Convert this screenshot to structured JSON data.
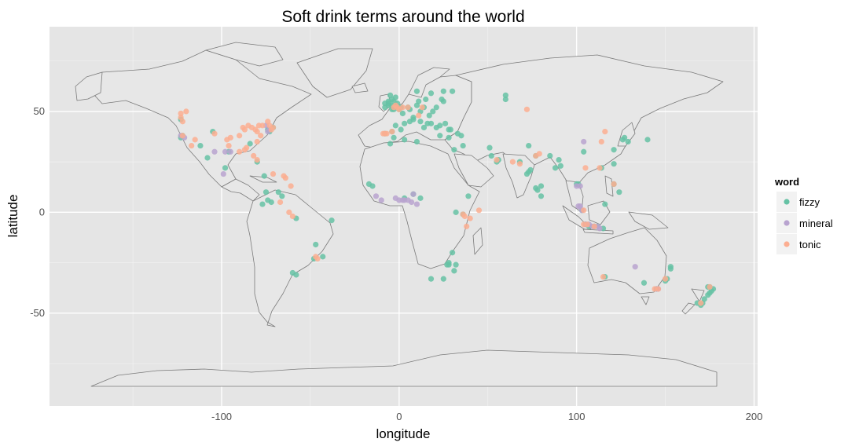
{
  "chart_data": {
    "type": "scatter",
    "title": "Soft drink terms around the world",
    "xlabel": "longitude",
    "ylabel": "latitude",
    "xlim": [
      -197,
      202
    ],
    "ylim": [
      -96,
      92
    ],
    "xticks": [
      -100,
      0,
      100,
      200
    ],
    "yticks": [
      -50,
      0,
      50
    ],
    "grid": true,
    "background": "#e5e5e5",
    "legend": {
      "title": "word",
      "position": "right"
    },
    "series": [
      {
        "name": "fizzy",
        "color": "#66c2a5",
        "points": [
          [
            -123,
            46
          ],
          [
            -123,
            37
          ],
          [
            -122,
            38
          ],
          [
            -112,
            33
          ],
          [
            -108,
            27
          ],
          [
            -105,
            40
          ],
          [
            -98,
            22
          ],
          [
            -96,
            30
          ],
          [
            -84,
            34
          ],
          [
            -80,
            25
          ],
          [
            -74,
            41
          ],
          [
            -71,
            42
          ],
          [
            -73,
            40
          ],
          [
            -76,
            18
          ],
          [
            -75,
            10
          ],
          [
            -72,
            5
          ],
          [
            -77,
            4
          ],
          [
            -74,
            6
          ],
          [
            -68,
            10
          ],
          [
            -66,
            8
          ],
          [
            -58,
            -3
          ],
          [
            -47,
            -16
          ],
          [
            -43,
            -22
          ],
          [
            -48,
            -23
          ],
          [
            -58,
            -31
          ],
          [
            -60,
            -30
          ],
          [
            -38,
            -4
          ],
          [
            -8,
            52
          ],
          [
            -6,
            53
          ],
          [
            -4,
            53
          ],
          [
            -3,
            55
          ],
          [
            -2,
            57
          ],
          [
            -4,
            56
          ],
          [
            -6,
            55
          ],
          [
            -5,
            58
          ],
          [
            -3,
            51
          ],
          [
            -1,
            52
          ],
          [
            0,
            51
          ],
          [
            -2,
            53
          ],
          [
            -1,
            54
          ],
          [
            1,
            52
          ],
          [
            -4,
            51
          ],
          [
            -6,
            54
          ],
          [
            -8,
            54
          ],
          [
            2,
            49
          ],
          [
            5,
            52
          ],
          [
            6,
            51
          ],
          [
            8,
            47
          ],
          [
            10,
            53
          ],
          [
            12,
            50
          ],
          [
            14,
            52
          ],
          [
            17,
            48
          ],
          [
            19,
            50
          ],
          [
            21,
            52
          ],
          [
            24,
            56
          ],
          [
            25,
            60
          ],
          [
            18,
            59
          ],
          [
            10,
            60
          ],
          [
            11,
            55
          ],
          [
            15,
            56
          ],
          [
            25,
            55
          ],
          [
            30,
            60
          ],
          [
            3,
            44
          ],
          [
            6,
            45
          ],
          [
            8,
            46
          ],
          [
            12,
            45
          ],
          [
            14,
            42
          ],
          [
            16,
            44
          ],
          [
            18,
            44
          ],
          [
            21,
            42
          ],
          [
            23,
            38
          ],
          [
            23,
            43
          ],
          [
            26,
            44
          ],
          [
            28,
            41
          ],
          [
            29,
            41
          ],
          [
            33,
            39
          ],
          [
            35,
            38
          ],
          [
            36,
            33
          ],
          [
            31,
            31
          ],
          [
            28,
            37
          ],
          [
            -4,
            40
          ],
          [
            -3,
            37
          ],
          [
            -8,
            39
          ],
          [
            -2,
            43
          ],
          [
            1,
            41
          ],
          [
            55,
            25
          ],
          [
            56,
            26
          ],
          [
            52,
            28
          ],
          [
            51,
            32
          ],
          [
            60,
            58
          ],
          [
            60,
            56
          ],
          [
            68,
            25
          ],
          [
            73,
            33
          ],
          [
            73,
            20
          ],
          [
            74,
            21
          ],
          [
            72,
            19
          ],
          [
            77,
            12
          ],
          [
            78,
            11
          ],
          [
            80,
            13
          ],
          [
            77,
            28
          ],
          [
            80,
            8
          ],
          [
            88,
            22
          ],
          [
            91,
            23
          ],
          [
            90,
            26
          ],
          [
            85,
            28
          ],
          [
            101,
            14
          ],
          [
            100,
            14
          ],
          [
            103,
            1
          ],
          [
            105,
            -6
          ],
          [
            107,
            -7
          ],
          [
            110,
            -7
          ],
          [
            112,
            -7
          ],
          [
            115,
            -8
          ],
          [
            116,
            4
          ],
          [
            114,
            22
          ],
          [
            121,
            31
          ],
          [
            121,
            24
          ],
          [
            121,
            14
          ],
          [
            124,
            10
          ],
          [
            126,
            36
          ],
          [
            127,
            37
          ],
          [
            129,
            35
          ],
          [
            140,
            36
          ],
          [
            104,
            30
          ],
          [
            153,
            -27
          ],
          [
            151,
            -33
          ],
          [
            150,
            -34
          ],
          [
            145,
            -38
          ],
          [
            138,
            -35
          ],
          [
            116,
            -32
          ],
          [
            153,
            -28
          ],
          [
            175,
            -37
          ],
          [
            174,
            -41
          ],
          [
            172,
            -43
          ],
          [
            171,
            -45
          ],
          [
            170,
            -46
          ],
          [
            176,
            -39
          ],
          [
            175,
            -40
          ],
          [
            174,
            -37
          ],
          [
            168,
            -45
          ],
          [
            177,
            -38
          ],
          [
            3,
            7
          ],
          [
            8,
            9
          ],
          [
            12,
            7
          ],
          [
            28,
            -26
          ],
          [
            28,
            -25
          ],
          [
            31,
            -29
          ],
          [
            18,
            -33
          ],
          [
            32,
            -26
          ],
          [
            30,
            -20
          ],
          [
            27,
            -26
          ],
          [
            25,
            -33
          ],
          [
            36,
            -1
          ],
          [
            32,
            0
          ],
          [
            39,
            8
          ],
          [
            3,
            36
          ],
          [
            -5,
            34
          ],
          [
            10,
            35
          ],
          [
            -17,
            14
          ],
          [
            -15,
            13
          ]
        ]
      },
      {
        "name": "mineral",
        "color": "#b8a3cf",
        "points": [
          [
            -123,
            38
          ],
          [
            -121,
            37
          ],
          [
            -104,
            30
          ],
          [
            -99,
            19
          ],
          [
            -95,
            30
          ],
          [
            -98,
            30
          ],
          [
            -74,
            40
          ],
          [
            -73,
            41
          ],
          [
            -75,
            43
          ],
          [
            -2,
            7
          ],
          [
            0,
            6
          ],
          [
            2,
            6
          ],
          [
            5,
            6
          ],
          [
            7,
            5
          ],
          [
            10,
            4
          ],
          [
            3,
            6
          ],
          [
            8,
            9
          ],
          [
            -13,
            8
          ],
          [
            -10,
            6
          ],
          [
            104,
            35
          ],
          [
            102,
            3
          ],
          [
            103,
            1
          ],
          [
            101,
            3
          ],
          [
            105,
            -6
          ],
          [
            107,
            -6
          ],
          [
            109,
            -7
          ],
          [
            112,
            -7
          ],
          [
            113,
            -8
          ],
          [
            110,
            -7
          ],
          [
            100,
            13
          ],
          [
            102,
            13
          ],
          [
            133,
            -27
          ],
          [
            146,
            -38
          ],
          [
            145,
            -38
          ]
        ]
      },
      {
        "name": "tonic",
        "color": "#fcae91",
        "points": [
          [
            -120,
            50
          ],
          [
            -123,
            49
          ],
          [
            -122,
            45
          ],
          [
            -123,
            47
          ],
          [
            -117,
            33
          ],
          [
            -115,
            36
          ],
          [
            -122,
            38
          ],
          [
            -104,
            39
          ],
          [
            -96,
            33
          ],
          [
            -95,
            37
          ],
          [
            -97,
            36
          ],
          [
            -90,
            38
          ],
          [
            -90,
            30
          ],
          [
            -88,
            42
          ],
          [
            -87,
            41
          ],
          [
            -85,
            43
          ],
          [
            -83,
            42
          ],
          [
            -81,
            41
          ],
          [
            -80,
            40
          ],
          [
            -77,
            43
          ],
          [
            -79,
            43
          ],
          [
            -74,
            45
          ],
          [
            -71,
            42
          ],
          [
            -72,
            41
          ],
          [
            -73,
            43
          ],
          [
            -78,
            38
          ],
          [
            -80,
            35
          ],
          [
            -82,
            28
          ],
          [
            -80,
            26
          ],
          [
            -86,
            32
          ],
          [
            -87,
            31
          ],
          [
            -64,
            17
          ],
          [
            -61,
            13
          ],
          [
            -65,
            18
          ],
          [
            -71,
            19
          ],
          [
            -67,
            5
          ],
          [
            -62,
            0
          ],
          [
            -60,
            -2
          ],
          [
            -46,
            -23
          ],
          [
            -47,
            -22
          ],
          [
            -1,
            52
          ],
          [
            -2,
            53
          ],
          [
            0,
            51
          ],
          [
            2,
            52
          ],
          [
            -3,
            52
          ],
          [
            5,
            52
          ],
          [
            13,
            52
          ],
          [
            11,
            48
          ],
          [
            -4,
            40
          ],
          [
            -8,
            39
          ],
          [
            -9,
            39
          ],
          [
            -7,
            39
          ],
          [
            36,
            -1
          ],
          [
            37,
            -2
          ],
          [
            38,
            -7
          ],
          [
            40,
            -3
          ],
          [
            45,
            1
          ],
          [
            55,
            26
          ],
          [
            64,
            25
          ],
          [
            68,
            24
          ],
          [
            77,
            28
          ],
          [
            79,
            29
          ],
          [
            72,
            51
          ],
          [
            104,
            1
          ],
          [
            105,
            22
          ],
          [
            116,
            40
          ],
          [
            114,
            35
          ],
          [
            113,
            22
          ],
          [
            121,
            14
          ],
          [
            104,
            -6
          ],
          [
            106,
            -6
          ],
          [
            110,
            -7
          ],
          [
            115,
            -32
          ],
          [
            144,
            -38
          ],
          [
            146,
            -38
          ],
          [
            150,
            -33
          ],
          [
            170,
            -45
          ],
          [
            175,
            -37
          ]
        ]
      }
    ]
  }
}
